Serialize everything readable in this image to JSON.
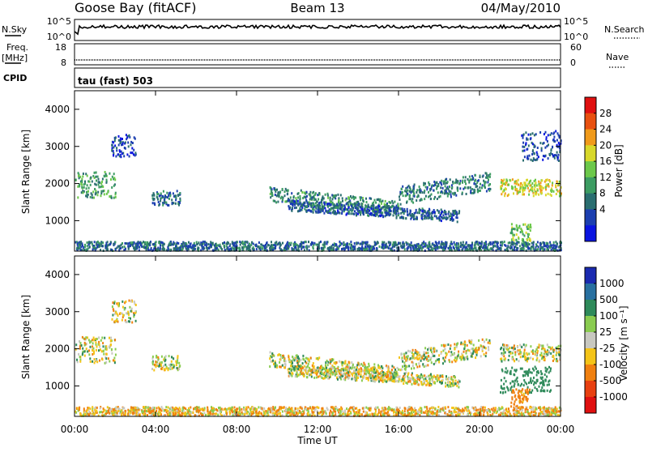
{
  "header": {
    "station": "Goose Bay (fitACF)",
    "beam": "Beam 13",
    "date": "04/May/2010"
  },
  "top_panels": {
    "nsky_label": "N.Sky",
    "nsky_ticks": [
      "10^5",
      "10^0"
    ],
    "nsearch_label": "N.Search",
    "nsearch_ticks": [
      "10^5",
      "10^0"
    ],
    "freq_label": "Freq.",
    "freq_unit": "[MHz]",
    "freq_ticks": [
      "18",
      "8"
    ],
    "nave_label": "Nave",
    "nave_ticks": [
      "60",
      "0"
    ],
    "cpid_label": "CPID",
    "cpid_value": "tau (fast) 503"
  },
  "power_colorbar": {
    "label": "Power [dB]",
    "ticks": [
      "28",
      "24",
      "20",
      "16",
      "12",
      "8",
      "4"
    ],
    "colors": [
      "#0a14e0",
      "#1c3fb0",
      "#2a6e70",
      "#3c9c62",
      "#6cc84a",
      "#d8d82a",
      "#f09a1a",
      "#e85010",
      "#e01010"
    ]
  },
  "velocity_colorbar": {
    "label": "Velocity [m s⁻¹]",
    "ticks": [
      "1000",
      "500",
      "100",
      "25",
      "-25",
      "-100",
      "-500",
      "-1000"
    ],
    "colors": [
      "#1a2ab0",
      "#2870a0",
      "#2e8a5a",
      "#8acc50",
      "#c8c8c0",
      "#f4c418",
      "#f08010",
      "#e84010",
      "#e01010"
    ]
  },
  "x_axis": {
    "label": "Time UT",
    "ticks": [
      "00:00",
      "04:00",
      "08:00",
      "12:00",
      "16:00",
      "20:00",
      "00:00"
    ]
  },
  "chart_data": [
    {
      "type": "heatmap",
      "name": "power",
      "ylabel": "Slant Range [km]",
      "xlabel": "",
      "yticks": [
        "4000",
        "3000",
        "2000",
        "1000"
      ],
      "xlim": [
        0,
        24
      ],
      "ylim": [
        180,
        4500
      ],
      "grid": false,
      "regions": [
        {
          "t0": 0.0,
          "t1": 2.0,
          "r0": 1600,
          "r1": 2300,
          "p": 14,
          "slope": 0
        },
        {
          "t0": 1.8,
          "t1": 3.0,
          "r0": 2700,
          "r1": 3300,
          "p": 6,
          "slope": 0
        },
        {
          "t0": 3.8,
          "t1": 5.2,
          "r0": 1400,
          "r1": 1800,
          "p": 9,
          "slope": 0
        },
        {
          "t0": 9.6,
          "t1": 16.0,
          "r0": 1500,
          "r1": 1900,
          "p": 12,
          "slope": -400
        },
        {
          "t0": 10.5,
          "t1": 19.0,
          "r0": 1250,
          "r1": 1550,
          "p": 8,
          "slope": -300
        },
        {
          "t0": 16.0,
          "t1": 20.5,
          "r0": 1400,
          "r1": 1900,
          "p": 11,
          "slope": 400
        },
        {
          "t0": 21.0,
          "t1": 24.0,
          "r0": 1650,
          "r1": 2100,
          "p": 21,
          "slope": 0
        },
        {
          "t0": 22.0,
          "t1": 24.0,
          "r0": 2600,
          "r1": 3400,
          "p": 7,
          "slope": 0
        },
        {
          "t0": 21.5,
          "t1": 22.5,
          "r0": 400,
          "r1": 900,
          "p": 18,
          "slope": 0
        },
        {
          "t0": 0.0,
          "t1": 24.0,
          "r0": 180,
          "r1": 420,
          "p": 9,
          "slope": 0
        }
      ]
    },
    {
      "type": "heatmap",
      "name": "velocity",
      "ylabel": "Slant Range [km]",
      "xlabel": "Time UT",
      "yticks": [
        "4000",
        "3000",
        "2000",
        "1000"
      ],
      "xlim": [
        0,
        24
      ],
      "ylim": [
        180,
        4500
      ],
      "grid": false,
      "regions": [
        {
          "t0": 0.0,
          "t1": 2.0,
          "r0": 1600,
          "r1": 2300,
          "v": 0,
          "slope": 0
        },
        {
          "t0": 1.8,
          "t1": 3.0,
          "r0": 2700,
          "r1": 3300,
          "v": 0,
          "slope": 0
        },
        {
          "t0": 3.8,
          "t1": 5.2,
          "r0": 1400,
          "r1": 1800,
          "v": 0,
          "slope": 0
        },
        {
          "t0": 9.6,
          "t1": 16.0,
          "r0": 1500,
          "r1": 1900,
          "v": 0,
          "slope": -400
        },
        {
          "t0": 10.5,
          "t1": 19.0,
          "r0": 1250,
          "r1": 1550,
          "v": 0,
          "slope": -300
        },
        {
          "t0": 16.0,
          "t1": 20.5,
          "r0": 1400,
          "r1": 1900,
          "v": 0,
          "slope": 400
        },
        {
          "t0": 21.0,
          "t1": 24.0,
          "r0": 1650,
          "r1": 2100,
          "v": 0,
          "slope": 0
        },
        {
          "t0": 21.0,
          "t1": 23.5,
          "r0": 800,
          "r1": 1500,
          "v": 300,
          "slope": 0
        },
        {
          "t0": 21.5,
          "t1": 22.5,
          "r0": 400,
          "r1": 900,
          "v": -200,
          "slope": 0
        },
        {
          "t0": 0.0,
          "t1": 24.0,
          "r0": 180,
          "r1": 420,
          "v": -60,
          "slope": 0
        }
      ]
    }
  ]
}
